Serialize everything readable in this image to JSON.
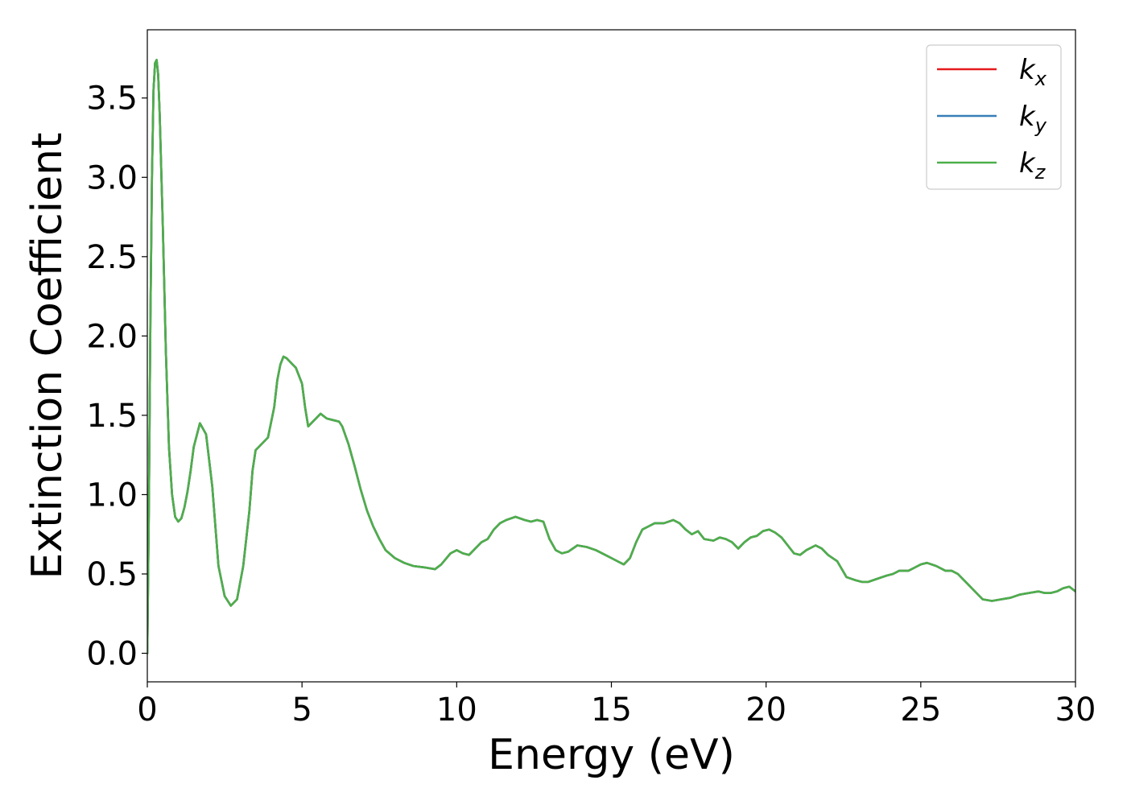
{
  "chart_data": {
    "type": "line",
    "title": "",
    "xlabel": "Energy (eV)",
    "ylabel": "Extinction Coefficient",
    "xlim": [
      0,
      30
    ],
    "ylim": [
      -0.18,
      3.93
    ],
    "xticks": [
      0,
      5,
      10,
      15,
      20,
      25,
      30
    ],
    "xtick_labels": [
      "0",
      "5",
      "10",
      "15",
      "20",
      "25",
      "30"
    ],
    "yticks": [
      0.0,
      0.5,
      1.0,
      1.5,
      2.0,
      2.5,
      3.0,
      3.5
    ],
    "ytick_labels": [
      "0.0",
      "0.5",
      "1.0",
      "1.5",
      "2.0",
      "2.5",
      "3.0",
      "3.5"
    ],
    "grid": false,
    "legend_position": "top-right",
    "series": [
      {
        "name": "k",
        "subscript": "x",
        "color": "#e41a1c",
        "x": [
          0.0,
          0.05,
          0.1,
          0.15,
          0.2,
          0.25,
          0.3,
          0.35,
          0.4,
          0.5,
          0.6,
          0.7,
          0.8,
          0.9,
          1.0,
          1.1,
          1.2,
          1.3,
          1.4,
          1.5,
          1.7,
          1.9,
          2.1,
          2.2,
          2.3,
          2.5,
          2.7,
          2.9,
          3.1,
          3.3,
          3.4,
          3.5,
          3.7,
          3.9,
          4.1,
          4.2,
          4.3,
          4.4,
          4.5,
          4.6,
          4.8,
          5.0,
          5.1,
          5.2,
          5.4,
          5.6,
          5.8,
          6.0,
          6.2,
          6.3,
          6.5,
          6.7,
          6.9,
          7.1,
          7.3,
          7.5,
          7.7,
          8.0,
          8.3,
          8.6,
          9.0,
          9.3,
          9.5,
          9.8,
          10.0,
          10.2,
          10.4,
          10.6,
          10.8,
          11.0,
          11.2,
          11.4,
          11.6,
          11.9,
          12.2,
          12.4,
          12.6,
          12.8,
          13.0,
          13.2,
          13.4,
          13.6,
          13.9,
          14.2,
          14.5,
          14.8,
          15.0,
          15.2,
          15.4,
          15.6,
          15.8,
          16.0,
          16.2,
          16.4,
          16.7,
          17.0,
          17.2,
          17.4,
          17.6,
          17.8,
          18.0,
          18.3,
          18.5,
          18.7,
          18.9,
          19.1,
          19.3,
          19.5,
          19.7,
          19.9,
          20.1,
          20.3,
          20.5,
          20.7,
          20.9,
          21.1,
          21.3,
          21.6,
          21.8,
          22.0,
          22.3,
          22.6,
          22.9,
          23.1,
          23.3,
          23.6,
          23.9,
          24.1,
          24.3,
          24.6,
          24.8,
          25.0,
          25.2,
          25.5,
          25.8,
          26.0,
          26.2,
          26.5,
          26.8,
          27.0,
          27.3,
          27.6,
          27.9,
          28.2,
          28.5,
          28.8,
          29.0,
          29.2,
          29.4,
          29.6,
          29.8,
          30.0
        ],
        "y": [
          0.0,
          0.9,
          2.1,
          3.0,
          3.55,
          3.72,
          3.74,
          3.65,
          3.4,
          2.7,
          1.9,
          1.3,
          1.0,
          0.86,
          0.83,
          0.85,
          0.92,
          1.02,
          1.15,
          1.3,
          1.45,
          1.38,
          1.05,
          0.8,
          0.55,
          0.36,
          0.3,
          0.34,
          0.55,
          0.9,
          1.15,
          1.28,
          1.32,
          1.36,
          1.55,
          1.72,
          1.82,
          1.87,
          1.86,
          1.84,
          1.8,
          1.7,
          1.55,
          1.43,
          1.47,
          1.51,
          1.48,
          1.47,
          1.46,
          1.43,
          1.32,
          1.18,
          1.03,
          0.9,
          0.8,
          0.72,
          0.65,
          0.6,
          0.57,
          0.55,
          0.54,
          0.53,
          0.56,
          0.63,
          0.65,
          0.63,
          0.62,
          0.66,
          0.7,
          0.72,
          0.78,
          0.82,
          0.84,
          0.86,
          0.84,
          0.83,
          0.84,
          0.83,
          0.72,
          0.65,
          0.63,
          0.64,
          0.68,
          0.67,
          0.65,
          0.62,
          0.6,
          0.58,
          0.56,
          0.6,
          0.7,
          0.78,
          0.8,
          0.82,
          0.82,
          0.84,
          0.82,
          0.78,
          0.75,
          0.77,
          0.72,
          0.71,
          0.73,
          0.72,
          0.7,
          0.66,
          0.7,
          0.73,
          0.74,
          0.77,
          0.78,
          0.76,
          0.73,
          0.68,
          0.63,
          0.62,
          0.65,
          0.68,
          0.66,
          0.62,
          0.58,
          0.48,
          0.46,
          0.45,
          0.45,
          0.47,
          0.49,
          0.5,
          0.52,
          0.52,
          0.54,
          0.56,
          0.57,
          0.55,
          0.52,
          0.52,
          0.5,
          0.44,
          0.38,
          0.34,
          0.33,
          0.34,
          0.35,
          0.37,
          0.38,
          0.39,
          0.38,
          0.38,
          0.39,
          0.41,
          0.42,
          0.39
        ]
      },
      {
        "name": "k",
        "subscript": "y",
        "color": "#377eb8",
        "x": [
          0.0,
          0.05,
          0.1,
          0.15,
          0.2,
          0.25,
          0.3,
          0.35,
          0.4,
          0.5,
          0.6,
          0.7,
          0.8,
          0.9,
          1.0,
          1.1,
          1.2,
          1.3,
          1.4,
          1.5,
          1.7,
          1.9,
          2.1,
          2.2,
          2.3,
          2.5,
          2.7,
          2.9,
          3.1,
          3.3,
          3.4,
          3.5,
          3.7,
          3.9,
          4.1,
          4.2,
          4.3,
          4.4,
          4.5,
          4.6,
          4.8,
          5.0,
          5.1,
          5.2,
          5.4,
          5.6,
          5.8,
          6.0,
          6.2,
          6.3,
          6.5,
          6.7,
          6.9,
          7.1,
          7.3,
          7.5,
          7.7,
          8.0,
          8.3,
          8.6,
          9.0,
          9.3,
          9.5,
          9.8,
          10.0,
          10.2,
          10.4,
          10.6,
          10.8,
          11.0,
          11.2,
          11.4,
          11.6,
          11.9,
          12.2,
          12.4,
          12.6,
          12.8,
          13.0,
          13.2,
          13.4,
          13.6,
          13.9,
          14.2,
          14.5,
          14.8,
          15.0,
          15.2,
          15.4,
          15.6,
          15.8,
          16.0,
          16.2,
          16.4,
          16.7,
          17.0,
          17.2,
          17.4,
          17.6,
          17.8,
          18.0,
          18.3,
          18.5,
          18.7,
          18.9,
          19.1,
          19.3,
          19.5,
          19.7,
          19.9,
          20.1,
          20.3,
          20.5,
          20.7,
          20.9,
          21.1,
          21.3,
          21.6,
          21.8,
          22.0,
          22.3,
          22.6,
          22.9,
          23.1,
          23.3,
          23.6,
          23.9,
          24.1,
          24.3,
          24.6,
          24.8,
          25.0,
          25.2,
          25.5,
          25.8,
          26.0,
          26.2,
          26.5,
          26.8,
          27.0,
          27.3,
          27.6,
          27.9,
          28.2,
          28.5,
          28.8,
          29.0,
          29.2,
          29.4,
          29.6,
          29.8,
          30.0
        ],
        "y": [
          0.0,
          0.9,
          2.1,
          3.0,
          3.55,
          3.72,
          3.74,
          3.65,
          3.4,
          2.7,
          1.9,
          1.3,
          1.0,
          0.86,
          0.83,
          0.85,
          0.92,
          1.02,
          1.15,
          1.3,
          1.45,
          1.38,
          1.05,
          0.8,
          0.55,
          0.36,
          0.3,
          0.34,
          0.55,
          0.9,
          1.15,
          1.28,
          1.32,
          1.36,
          1.55,
          1.72,
          1.82,
          1.87,
          1.86,
          1.84,
          1.8,
          1.7,
          1.55,
          1.43,
          1.47,
          1.51,
          1.48,
          1.47,
          1.46,
          1.43,
          1.32,
          1.18,
          1.03,
          0.9,
          0.8,
          0.72,
          0.65,
          0.6,
          0.57,
          0.55,
          0.54,
          0.53,
          0.56,
          0.63,
          0.65,
          0.63,
          0.62,
          0.66,
          0.7,
          0.72,
          0.78,
          0.82,
          0.84,
          0.86,
          0.84,
          0.83,
          0.84,
          0.83,
          0.72,
          0.65,
          0.63,
          0.64,
          0.68,
          0.67,
          0.65,
          0.62,
          0.6,
          0.58,
          0.56,
          0.6,
          0.7,
          0.78,
          0.8,
          0.82,
          0.82,
          0.84,
          0.82,
          0.78,
          0.75,
          0.77,
          0.72,
          0.71,
          0.73,
          0.72,
          0.7,
          0.66,
          0.7,
          0.73,
          0.74,
          0.77,
          0.78,
          0.76,
          0.73,
          0.68,
          0.63,
          0.62,
          0.65,
          0.68,
          0.66,
          0.62,
          0.58,
          0.48,
          0.46,
          0.45,
          0.45,
          0.47,
          0.49,
          0.5,
          0.52,
          0.52,
          0.54,
          0.56,
          0.57,
          0.55,
          0.52,
          0.52,
          0.5,
          0.44,
          0.38,
          0.34,
          0.33,
          0.34,
          0.35,
          0.37,
          0.38,
          0.39,
          0.38,
          0.38,
          0.39,
          0.41,
          0.42,
          0.39
        ]
      },
      {
        "name": "k",
        "subscript": "z",
        "color": "#4daf4a",
        "x": [
          0.0,
          0.05,
          0.1,
          0.15,
          0.2,
          0.25,
          0.3,
          0.35,
          0.4,
          0.5,
          0.6,
          0.7,
          0.8,
          0.9,
          1.0,
          1.1,
          1.2,
          1.3,
          1.4,
          1.5,
          1.7,
          1.9,
          2.1,
          2.2,
          2.3,
          2.5,
          2.7,
          2.9,
          3.1,
          3.3,
          3.4,
          3.5,
          3.7,
          3.9,
          4.1,
          4.2,
          4.3,
          4.4,
          4.5,
          4.6,
          4.8,
          5.0,
          5.1,
          5.2,
          5.4,
          5.6,
          5.8,
          6.0,
          6.2,
          6.3,
          6.5,
          6.7,
          6.9,
          7.1,
          7.3,
          7.5,
          7.7,
          8.0,
          8.3,
          8.6,
          9.0,
          9.3,
          9.5,
          9.8,
          10.0,
          10.2,
          10.4,
          10.6,
          10.8,
          11.0,
          11.2,
          11.4,
          11.6,
          11.9,
          12.2,
          12.4,
          12.6,
          12.8,
          13.0,
          13.2,
          13.4,
          13.6,
          13.9,
          14.2,
          14.5,
          14.8,
          15.0,
          15.2,
          15.4,
          15.6,
          15.8,
          16.0,
          16.2,
          16.4,
          16.7,
          17.0,
          17.2,
          17.4,
          17.6,
          17.8,
          18.0,
          18.3,
          18.5,
          18.7,
          18.9,
          19.1,
          19.3,
          19.5,
          19.7,
          19.9,
          20.1,
          20.3,
          20.5,
          20.7,
          20.9,
          21.1,
          21.3,
          21.6,
          21.8,
          22.0,
          22.3,
          22.6,
          22.9,
          23.1,
          23.3,
          23.6,
          23.9,
          24.1,
          24.3,
          24.6,
          24.8,
          25.0,
          25.2,
          25.5,
          25.8,
          26.0,
          26.2,
          26.5,
          26.8,
          27.0,
          27.3,
          27.6,
          27.9,
          28.2,
          28.5,
          28.8,
          29.0,
          29.2,
          29.4,
          29.6,
          29.8,
          30.0
        ],
        "y": [
          0.0,
          0.9,
          2.1,
          3.0,
          3.55,
          3.72,
          3.74,
          3.65,
          3.4,
          2.7,
          1.9,
          1.3,
          1.0,
          0.86,
          0.83,
          0.85,
          0.92,
          1.02,
          1.15,
          1.3,
          1.45,
          1.38,
          1.05,
          0.8,
          0.55,
          0.36,
          0.3,
          0.34,
          0.55,
          0.9,
          1.15,
          1.28,
          1.32,
          1.36,
          1.55,
          1.72,
          1.82,
          1.87,
          1.86,
          1.84,
          1.8,
          1.7,
          1.55,
          1.43,
          1.47,
          1.51,
          1.48,
          1.47,
          1.46,
          1.43,
          1.32,
          1.18,
          1.03,
          0.9,
          0.8,
          0.72,
          0.65,
          0.6,
          0.57,
          0.55,
          0.54,
          0.53,
          0.56,
          0.63,
          0.65,
          0.63,
          0.62,
          0.66,
          0.7,
          0.72,
          0.78,
          0.82,
          0.84,
          0.86,
          0.84,
          0.83,
          0.84,
          0.83,
          0.72,
          0.65,
          0.63,
          0.64,
          0.68,
          0.67,
          0.65,
          0.62,
          0.6,
          0.58,
          0.56,
          0.6,
          0.7,
          0.78,
          0.8,
          0.82,
          0.82,
          0.84,
          0.82,
          0.78,
          0.75,
          0.77,
          0.72,
          0.71,
          0.73,
          0.72,
          0.7,
          0.66,
          0.7,
          0.73,
          0.74,
          0.77,
          0.78,
          0.76,
          0.73,
          0.68,
          0.63,
          0.62,
          0.65,
          0.68,
          0.66,
          0.62,
          0.58,
          0.48,
          0.46,
          0.45,
          0.45,
          0.47,
          0.49,
          0.5,
          0.52,
          0.52,
          0.54,
          0.56,
          0.57,
          0.55,
          0.52,
          0.52,
          0.5,
          0.44,
          0.38,
          0.34,
          0.33,
          0.34,
          0.35,
          0.37,
          0.38,
          0.39,
          0.38,
          0.38,
          0.39,
          0.41,
          0.42,
          0.39
        ]
      }
    ]
  }
}
